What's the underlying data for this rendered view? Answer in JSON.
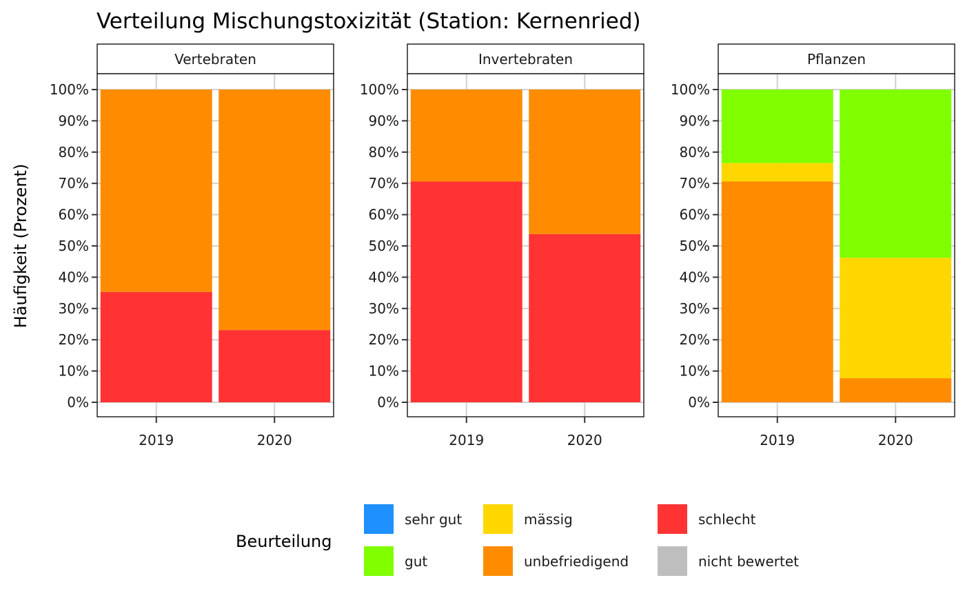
{
  "chart_data": {
    "type": "bar",
    "stacked": true,
    "title": "Verteilung Mischungstoxizität (Station: Kernenried)",
    "ylabel": "Häufigkeit (Prozent)",
    "xlabel": "",
    "ylim": [
      0,
      100
    ],
    "y_ticks": [
      "0%",
      "10%",
      "20%",
      "30%",
      "40%",
      "50%",
      "60%",
      "70%",
      "80%",
      "90%",
      "100%"
    ],
    "categories": [
      "2019",
      "2020"
    ],
    "grid": true,
    "legend": {
      "title": "Beurteilung",
      "position": "bottom",
      "items": [
        {
          "name": "sehr gut",
          "color": "#1E90FF"
        },
        {
          "name": "gut",
          "color": "#80FF00"
        },
        {
          "name": "mässig",
          "color": "#FFD700"
        },
        {
          "name": "unbefriedigend",
          "color": "#FF8C00"
        },
        {
          "name": "schlecht",
          "color": "#FF3333"
        },
        {
          "name": "nicht bewertet",
          "color": "#BEBEBE"
        }
      ]
    },
    "panels": [
      {
        "name": "Vertebraten",
        "series": [
          {
            "name": "schlecht",
            "values": [
              35.3,
              23.1
            ]
          },
          {
            "name": "unbefriedigend",
            "values": [
              64.7,
              76.9
            ]
          },
          {
            "name": "mässig",
            "values": [
              0,
              0
            ]
          },
          {
            "name": "gut",
            "values": [
              0,
              0
            ]
          }
        ]
      },
      {
        "name": "Invertebraten",
        "series": [
          {
            "name": "schlecht",
            "values": [
              70.6,
              53.8
            ]
          },
          {
            "name": "unbefriedigend",
            "values": [
              29.4,
              46.2
            ]
          },
          {
            "name": "mässig",
            "values": [
              0,
              0
            ]
          },
          {
            "name": "gut",
            "values": [
              0,
              0
            ]
          }
        ]
      },
      {
        "name": "Pflanzen",
        "series": [
          {
            "name": "schlecht",
            "values": [
              0,
              0
            ]
          },
          {
            "name": "unbefriedigend",
            "values": [
              70.6,
              7.7
            ]
          },
          {
            "name": "mässig",
            "values": [
              5.9,
              38.5
            ]
          },
          {
            "name": "gut",
            "values": [
              23.5,
              53.8
            ]
          }
        ]
      }
    ]
  }
}
